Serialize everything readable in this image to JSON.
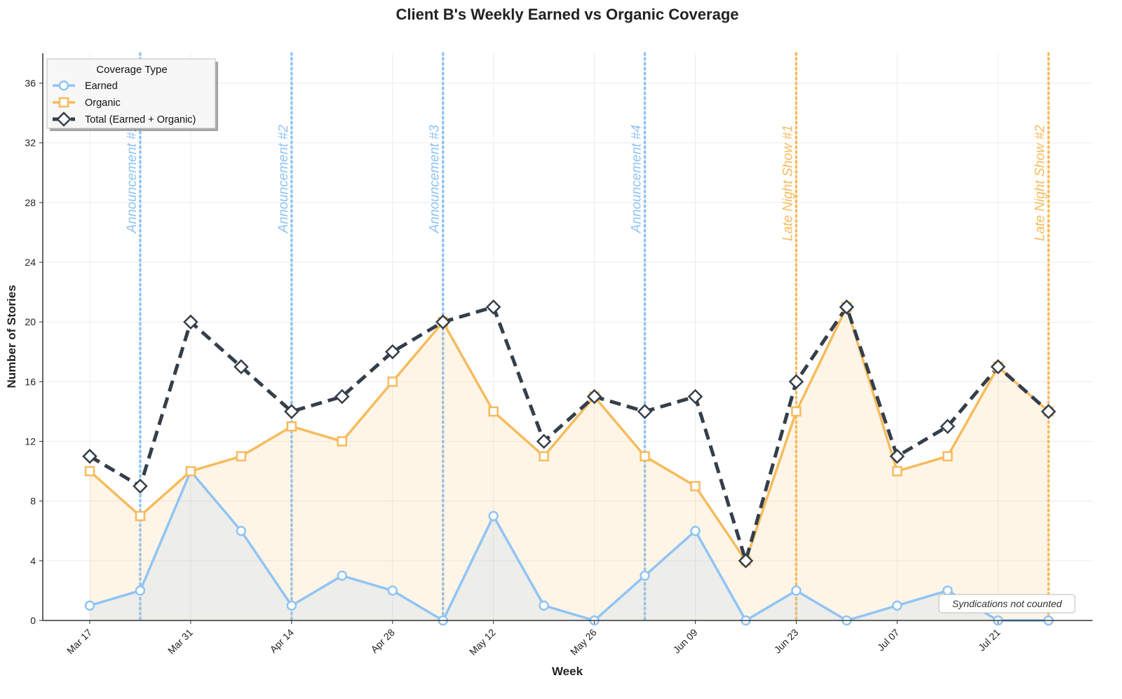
{
  "chart_data": {
    "type": "line",
    "title": "Client B's Weekly Earned vs Organic Coverage",
    "xlabel": "Week",
    "ylabel": "Number of Stories",
    "ylim": [
      0,
      38
    ],
    "y_ticks": [
      "0",
      "4",
      "8",
      "12",
      "16",
      "20",
      "24",
      "28",
      "32",
      "36"
    ],
    "x": [
      "2025-03-17",
      "2025-03-24",
      "2025-03-31",
      "2025-04-07",
      "2025-04-14",
      "2025-04-21",
      "2025-04-28",
      "2025-05-05",
      "2025-05-12",
      "2025-05-19",
      "2025-05-26",
      "2025-06-02",
      "2025-06-09",
      "2025-06-16",
      "2025-06-23",
      "2025-06-30",
      "2025-07-07",
      "2025-07-14",
      "2025-07-21",
      "2025-07-28"
    ],
    "x_tick_labels": [
      {
        "date": "2025-03-17",
        "label": "Mar 17"
      },
      {
        "date": "2025-03-31",
        "label": "Mar 31"
      },
      {
        "date": "2025-04-14",
        "label": "Apr 14"
      },
      {
        "date": "2025-04-28",
        "label": "Apr 28"
      },
      {
        "date": "2025-05-12",
        "label": "May 12"
      },
      {
        "date": "2025-05-26",
        "label": "May 26"
      },
      {
        "date": "2025-06-09",
        "label": "Jun 09"
      },
      {
        "date": "2025-06-23",
        "label": "Jun 23"
      },
      {
        "date": "2025-07-07",
        "label": "Jul 07"
      },
      {
        "date": "2025-07-21",
        "label": "Jul 21"
      }
    ],
    "series": [
      {
        "name": "Earned",
        "color": "#90c4f5",
        "marker": "circle",
        "values": [
          1,
          2,
          10,
          6,
          1,
          3,
          2,
          0,
          7,
          1,
          0,
          3,
          6,
          0,
          2,
          0,
          1,
          2,
          0,
          0
        ]
      },
      {
        "name": "Organic",
        "color": "#f7bb5c",
        "marker": "square",
        "values": [
          10,
          7,
          10,
          11,
          13,
          12,
          16,
          20,
          14,
          11,
          15,
          11,
          9,
          4,
          14,
          21,
          10,
          11,
          17,
          14
        ]
      },
      {
        "name": "Total (Earned + Organic)",
        "color": "#343f4a",
        "marker": "diamond",
        "values": [
          11,
          9,
          20,
          17,
          14,
          15,
          18,
          20,
          21,
          12,
          15,
          14,
          15,
          4,
          16,
          21,
          11,
          13,
          17,
          14
        ]
      }
    ],
    "events": [
      {
        "date": "2025-03-24",
        "label": "Announcement #1",
        "color": "#90c4f5"
      },
      {
        "date": "2025-04-14",
        "label": "Announcement #2",
        "color": "#90c4f5"
      },
      {
        "date": "2025-05-05",
        "label": "Announcement #3",
        "color": "#90c4f5"
      },
      {
        "date": "2025-06-02",
        "label": "Announcement #4",
        "color": "#90c4f5"
      },
      {
        "date": "2025-06-23",
        "label": "Late Night Show #1",
        "color": "#f7bb5c"
      },
      {
        "date": "2025-07-28",
        "label": "Late Night Show #2",
        "color": "#f7bb5c"
      }
    ],
    "legend": {
      "title": "Coverage Type",
      "placement": "top-left"
    },
    "note": "Syndications not counted",
    "grid": true
  }
}
